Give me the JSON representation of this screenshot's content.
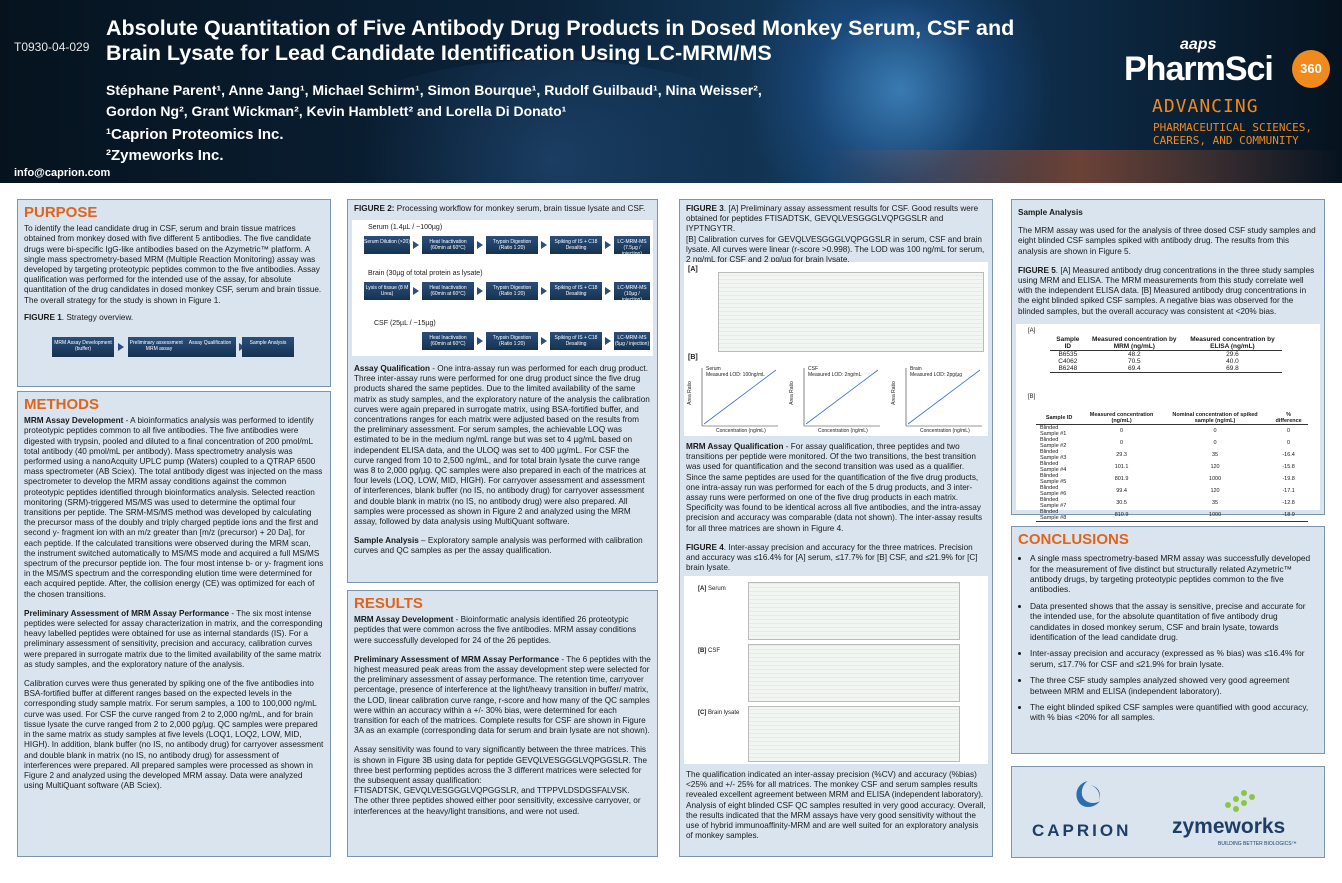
{
  "header": {
    "poster_id": "T0930-04-029",
    "title": "Absolute Quantitation of Five Antibody Drug Products in Dosed Monkey Serum, CSF and Brain Lysate for Lead Candidate Identification Using LC-MRM/MS",
    "authors_line1": "Stéphane Parent¹, Anne Jang¹, Michael Schirm¹, Simon Bourque¹, Rudolf Guilbaud¹, Nina Weisser²,",
    "authors_line2": "Gordon Ng², Grant Wickman², Kevin Hamblett² and Lorella Di Donato¹",
    "affiliation1": "¹Caprion Proteomics Inc.",
    "affiliation2": "²Zymeworks Inc.",
    "email": "info@caprion.com",
    "logo": {
      "aaps": "aaps",
      "pharmsci": "PharmSci",
      "badge": "360",
      "advancing": "ADVANCING",
      "tagline1": "PHARMACEUTICAL SCIENCES,",
      "tagline2": "CAREERS, AND COMMUNITY",
      "accent": "#f08a1c"
    }
  },
  "purpose": {
    "title": "PURPOSE",
    "text": "To identify the lead candidate drug in CSF, serum and brain tissue matrices obtained from monkey dosed with five different 5 antibodies. The five candidate drugs were bi-specific IgG-like antibodies based on the Azymetric™ platform. A single mass spectrometry-based MRM (Multiple Reaction Monitoring) assay was developed by targeting proteotypic peptides common to the five antibodies. Assay qualification was performed for the intended use of the assay, for absolute quantitation of the drug candidates in dosed monkey CSF, serum and brain tissue. The overall strategy for the study is shown in Figure 1.",
    "figure_label": "FIGURE 1",
    "figure_caption": ". Strategy overview.",
    "steps": [
      "MRM Assay Development (buffer)",
      "Preliminary assessment of MRM assay",
      "Assay Qualification",
      "Sample Analysis"
    ]
  },
  "methods": {
    "title": "METHODS",
    "p1_head": "MRM Assay Development",
    "p1": " - A bioinformatics analysis was performed to identify proteotypic peptides common to all five antibodies. The five antibodies were digested with trypsin, pooled and diluted to a final concentration of 200 pmol/mL total antibody (40 pmol/mL per antibody). Mass spectrometry analysis was performed using a nanoAcquity UPLC pump (Waters) coupled to a QTRAP 6500 mass spectrometer (AB Sciex). The total antibody digest was injected on the mass spectrometer to develop the MRM assay conditions against the common proteotypic peptides identified through bioinformatics analysis. Selected reaction monitoring (SRM)-triggered MS/MS was used to determine the optimal four transitions per peptide. The SRM-MS/MS method was developed by calculating the precursor mass of the doubly and triply charged peptide ions and the first and second y- fragment ion with an m/z greater than [m/z (precursor) + 20 Da], for each peptide. If the calculated transitions were observed during the MRM scan, the instrument switched automatically to MS/MS mode and acquired a full MS/MS spectrum of the precursor peptide ion. The four most intense b- or y- fragment ions in the MS/MS spectrum and the corresponding elution time were determined for each acquired peptide. After, the collision energy (CE) was optimized for each of the chosen transitions.",
    "p2_head": "Preliminary Assessment of MRM Assay Performance",
    "p2": " - The six most intense peptides were selected for assay characterization in matrix, and the corresponding heavy labelled peptides were obtained for use as internal standards (IS). For a preliminary assessment of sensitivity, precision and accuracy, calibration curves were prepared in surrogate matrix due to the limited availability of the same matrix as study samples, and the exploratory nature of the analysis.",
    "p3": "Calibration curves were thus generated by spiking one of the five antibodies into BSA-fortified buffer at different ranges based on the expected levels in the corresponding study sample matrix. For serum samples, a 100 to 100,000 ng/mL curve was used. For CSF the curve ranged from 2 to 2,000 ng/mL, and for brain tissue lysate the curve ranged from 2 to 2,000 pg/µg. QC samples were prepared in the same matrix as study samples at five levels (LOQ1, LOQ2, LOW, MID, HIGH). In addition, blank buffer (no IS, no antibody drug) for carryover assessment and double blank in matrix (no IS, no antibody drug) for assessment of interferences were prepared. All prepared samples were processed as shown in Figure 2 and analyzed using the developed MRM assay. Data were analyzed using MultiQuant software (AB Sciex)."
  },
  "figure2": {
    "label": "FIGURE 2:",
    "caption": " Processing workflow for monkey serum, brain tissue lysate and CSF.",
    "serum_label": "Serum (1.4µL / ~100µg)",
    "brain_label": "Brain (30µg of total protein as lysate)",
    "csf_label": "CSF (25µL / ~15µg)",
    "serum_steps": [
      "Serum Dilution (×20)",
      "Heat Inactivation (60min at 60°C)",
      "Trypsin Digestion (Ratio 1:20)",
      "Spiking of IS + C18 Desalting",
      "LC-MRM-MS (7.5µg / injection)"
    ],
    "brain_steps": [
      "Lysis of tissue (8 M Urea)",
      "Heat Inactivation (60min at 60°C)",
      "Trypsin Digestion (Ratio 1:20)",
      "Spiking of IS + C18 Desalting",
      "LC-MRM-MS (10µg / injection)"
    ],
    "csf_steps": [
      "Heat Inactivation (60min at 60°C)",
      "Trypsin Digestion (Ratio 1:20)",
      "Spiking of IS + C18 Desalting",
      "LC-MRM-MS (5µg / injection)"
    ]
  },
  "assay_qual": {
    "head": "Assay Qualification",
    "text": " - One intra-assay run was performed for each drug product. Three inter-assay runs were performed for one drug product since the five drug products shared the same peptides. Due to the limited availability of the same matrix as study samples, and the exploratory nature of the analysis the calibration curves were again prepared in surrogate matrix, using BSA-fortified buffer, and concentrations ranges for each matrix were adjusted based on the results from the preliminary assessment. For serum samples, the achievable LOQ was estimated to be in the medium ng/mL range but was set to 4 µg/mL based on independent ELISA data, and the ULOQ was set to 400 µg/mL. For CSF the curve ranged from 10 to 2,500 ng/mL, and for total brain lysate the curve range was 8 to 2,000 pg/µg. QC samples were also prepared in each of the matrices at four levels (LOQ, LOW, MID, HIGH). For carryover assessment and assessment of interferences, blank buffer (no IS, no antibody drug) for carryover assessment and double blank in matrix (no IS, no antibody drug) were also prepared. All samples were processed as shown in Figure 2 and analyzed using the MRM assay, followed by data analysis using MultiQuant software.",
    "sample_head": "Sample Analysis",
    "sample_text": " – Exploratory sample analysis was performed with calibration curves and QC samples as per the assay qualification."
  },
  "results": {
    "title": "RESULTS",
    "r1_head": "MRM Assay Development",
    "r1": " - Bioinformatic analysis identified 26 proteotypic peptides that were common across the five antibodies. MRM assay conditions were successfully developed for 24 of the 26 peptides.",
    "r2_head": "Preliminary Assessment of MRM Assay Performance",
    "r2": " - The 6 peptides with the highest measured peak areas from the assay development step were selected for the preliminary assessment of assay performance. The retention time, carryover percentage, presence of interference at the light/heavy transition in buffer/ matrix, the LOD, linear calibration curve range, r-score and how many of the QC samples were within an accuracy within a +/- 30% bias, were determined for each transition for each of the matrices. Complete results for CSF are shown in Figure 3A as an example (corresponding data for serum and brain lysate are not shown).",
    "r3": "Assay sensitivity was found to vary significantly between the three matrices. This is shown in Figure 3B using data for peptide GEVQLVESGGGLVQPGGSLR. The three best performing peptides across the 3 different matrices were selected for the subsequent assay qualification:",
    "r3_peptides": "FTISADTSK, GEVQLVESGGGLVQPGGSLR, and TTPPVLDSDGSFALVSK.",
    "r3_tail": "The other three peptides showed either poor sensitivity, excessive carryover, or interferences at the heavy/light transitions, and were not used."
  },
  "figure3": {
    "label": "FIGURE 3",
    "caption_a": ". [A] Preliminary assay assessment results for CSF. Good results were obtained for peptides FTISADTSK, GEVQLVESGGGLVQPGGSLR and IYPTNGYTR.",
    "caption_b": "[B] Calibration curves for GEVQLVESGGGLVQPGGSLR in serum, CSF and brain lysate. All curves were linear (r-score >0.998). The LOD was 100 ng/mL for serum, 2 ng/mL for CSF and 2 pg/µg for brain lysate.",
    "panel_a": "[A]",
    "panel_b": "[B]",
    "plots": [
      {
        "name": "Serum",
        "note": "Measured LOD: 100ng/mL"
      },
      {
        "name": "CSF",
        "note": "Measured LOD: 2ng/mL"
      },
      {
        "name": "Brain",
        "note": "Measured LOD: 2pg/µg"
      }
    ],
    "xlabel": "Concentration (ng/mL)",
    "ylabel": "Area Ratio"
  },
  "mrm_qual": {
    "head": "MRM Assay Qualification",
    "text": " - For assay qualification, three peptides and two transitions per peptide were monitored. Of the two transitions, the best transition was used for quantification and the second transition was used as a qualifier. Since the same peptides are used for the quantification of the five drug products, one intra-assay run was performed for each of the 5 drug products, and 3 inter-assay runs were performed on one of the five drug products in each matrix. Specificity was found to be identical across all five antibodies, and the intra-assay precision and accuracy was comparable (data not shown). The inter-assay results for all three matrices are shown in Figure 4."
  },
  "figure4": {
    "label": "FIGURE 4",
    "caption": ". Inter-assay precision and accuracy for the three matrices. Precision and accuracy was ≤16.4% for [A] serum, ≤17.7% for [B] CSF, and ≤21.9% for [C] brain lysate.",
    "panels": [
      {
        "tag": "[A]",
        "name": "Serum"
      },
      {
        "tag": "[B]",
        "name": "CSF"
      },
      {
        "tag": "[C]",
        "name": "Brain lysate"
      }
    ],
    "conclusion": "The qualification indicated an inter-assay precision (%CV) and accuracy (%bias) <25% and +/- 25% for all matrices. The monkey CSF and serum samples results revealed excellent agreement between MRM and ELISA (independent laboratory). Analysis of eight blinded CSF QC samples resulted in very good accuracy. Overall, the results indicated that the MRM assays have very good sensitivity without the use of hybrid immunoaffinity-MRM and are well suited for an exploratory analysis of monkey samples."
  },
  "sample_analysis": {
    "title": "Sample Analysis",
    "text": "The MRM assay was used for the analysis of three dosed CSF study samples and eight blinded CSF samples spiked with antibody drug. The results from this analysis are shown in Figure 5."
  },
  "figure5": {
    "label": "FIGURE 5",
    "caption": ". [A] Measured antibody drug concentrations in the three study samples using MRM and ELISA. The MRM measurements from this study correlate well with the independent ELISA data. [B] Measured antibody drug concentrations in the eight blinded spiked CSF samples. A negative bias was observed for the blinded samples, but the overall accuracy was consistent at <20% bias.",
    "tag_a": "[A]",
    "tag_b": "[B]",
    "table_a": {
      "headers": [
        "Sample ID",
        "Measured concentration by MRM (ng/mL)",
        "Measured concentration by ELISA (ng/mL)"
      ],
      "rows": [
        [
          "B6535",
          "48.2",
          "29.6"
        ],
        [
          "C4062",
          "70.5",
          "40.0"
        ],
        [
          "B6248",
          "69.4",
          "69.8"
        ]
      ]
    },
    "table_b": {
      "headers": [
        "Sample ID",
        "Measured concentration (ng/mL)",
        "Nominal concentration of spiked sample (ng/mL)",
        "% difference"
      ],
      "rows": [
        [
          "Blinded Sample #1",
          "0",
          "0",
          "0"
        ],
        [
          "Blinded Sample #2",
          "0",
          "0",
          "0"
        ],
        [
          "Blinded Sample #3",
          "29.3",
          "35",
          "-16.4"
        ],
        [
          "Blinded Sample #4",
          "101.1",
          "120",
          "-15.8"
        ],
        [
          "Blinded Sample #5",
          "801.9",
          "1000",
          "-19.8"
        ],
        [
          "Blinded Sample #6",
          "99.4",
          "120",
          "-17.1"
        ],
        [
          "Blinded Sample #7",
          "30.5",
          "35",
          "-12.8"
        ],
        [
          "Blinded Sample #8",
          "810.9",
          "1000",
          "-18.9"
        ]
      ]
    }
  },
  "conclusions": {
    "title": "CONCLUSIONS",
    "items": [
      "A single mass spectrometry-based MRM assay was successfully developed for the measurement of five distinct but structurally related Azymetric™ antibody drugs, by targeting proteotypic peptides common to the five antibodies.",
      "Data presented shows that the assay is sensitive, precise and accurate for the intended use, for the absolute quantitation of five antibody drug candidates in dosed monkey serum, CSF and brain lysate, towards identification of the lead candidate drug.",
      "Inter-assay precision and accuracy (expressed as % bias) was ≤16.4% for serum, ≤17.7% for CSF and ≤21.9% for brain lysate.",
      "The three CSF study samples analyzed showed very good agreement between MRM and ELISA (independent laboratory).",
      "The eight blinded spiked CSF samples were quantified with good accuracy, with % bias <20% for all samples."
    ]
  },
  "footer_logos": {
    "caprion": "CAPRION",
    "zymeworks": "zymeworks",
    "zymeworks_tag": "BUILDING BETTER BIOLOGICS™"
  },
  "colors": {
    "accent": "#e2641c",
    "panel": "#d9e4ee",
    "navy": "#16324f"
  }
}
